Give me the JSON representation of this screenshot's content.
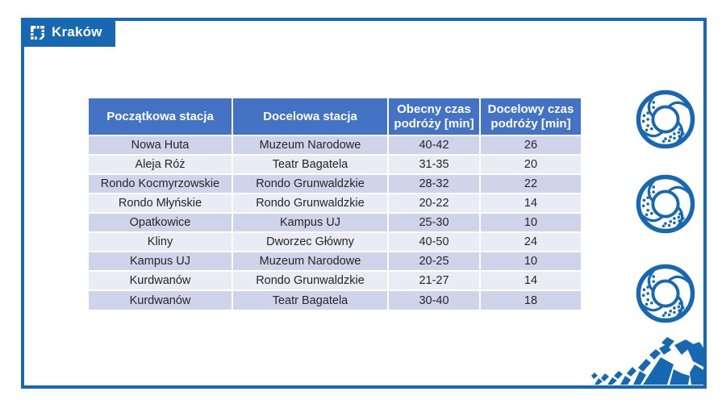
{
  "slide": {
    "badge": {
      "label": "Kraków",
      "icon": "krakow-tiles-logo"
    }
  },
  "colors": {
    "accent_blue": "#1668B3",
    "table_header_bg": "#4472C4",
    "row_band_dark": "#CFD4EA",
    "row_band_light": "#E9EBF5",
    "table_text": "#262626",
    "header_text": "#FFFFFF"
  },
  "table": {
    "columns": [
      "Początkowa stacja",
      "Docelowa stacja",
      "Obecny czas podróży [min]",
      "Docelowy czas podróży [min]"
    ],
    "rows": [
      [
        "Nowa Huta",
        "Muzeum Narodowe",
        "40-42",
        "26"
      ],
      [
        "Aleja Róż",
        "Teatr Bagatela",
        "31-35",
        "20"
      ],
      [
        "Rondo Kocmyrzowskie",
        "Rondo Grunwaldzkie",
        "28-32",
        "22"
      ],
      [
        "Rondo Młyńskie",
        "Rondo Grunwaldzkie",
        "20-22",
        "14"
      ],
      [
        "Opatkowice",
        "Kampus UJ",
        "25-30",
        "10"
      ],
      [
        "Kliny",
        "Dworzec Główny",
        "40-50",
        "24"
      ],
      [
        "Kampus UJ",
        "Muzeum Narodowe",
        "20-25",
        "10"
      ],
      [
        "Kurdwanów",
        "Rondo Grunwaldzkie",
        "21-27",
        "14"
      ],
      [
        "Kurdwanów",
        "Teatr Bagatela",
        "30-40",
        "18"
      ]
    ]
  },
  "decorations": {
    "side_icons": [
      {
        "name": "roundabout-icon"
      },
      {
        "name": "roundabout-icon"
      },
      {
        "name": "roundabout-icon"
      }
    ],
    "corner": {
      "name": "city-map-blocks-decoration"
    }
  }
}
